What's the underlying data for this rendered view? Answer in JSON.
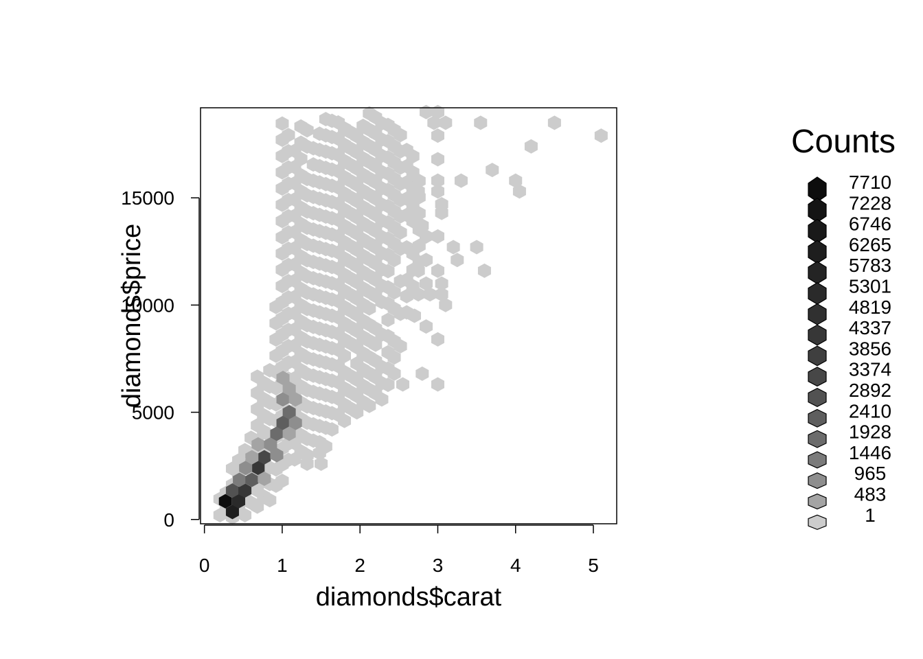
{
  "chart_data": {
    "type": "heatmap",
    "subtype": "hexbin",
    "title": "",
    "xlabel": "diamonds$carat",
    "ylabel": "diamonds$price",
    "xlim": [
      -0.05,
      5.3
    ],
    "ylim": [
      -200,
      19200
    ],
    "x_ticks": [
      0,
      1,
      2,
      3,
      4,
      5
    ],
    "y_ticks": [
      0,
      5000,
      10000,
      15000
    ],
    "grid": false,
    "legend": {
      "title": "Counts",
      "placement": "right",
      "levels": [
        "7710",
        "7228",
        "6746",
        "6265",
        "5783",
        "5301",
        "4819",
        "4337",
        "3856",
        "3374",
        "2892",
        "2410",
        "1928",
        "1446",
        "965",
        "483",
        "1"
      ],
      "colors": [
        "#0d0d0d",
        "#141414",
        "#191919",
        "#1e1e1e",
        "#242424",
        "#2a2a2a",
        "#303030",
        "#373737",
        "#3f3f3f",
        "#474747",
        "#525252",
        "#5e5e5e",
        "#6c6c6c",
        "#7b7b7b",
        "#8e8e8e",
        "#a4a4a4",
        "#cccccc"
      ]
    },
    "base_color": "#cccccc",
    "hex_size": {
      "dx": 0.168,
      "dy": 505
    },
    "regions": [
      {
        "x": 0.2,
        "y0": 200,
        "y1": 1300
      },
      {
        "x": 0.28,
        "y0": 100,
        "y1": 1800
      },
      {
        "x": 0.36,
        "y0": 100,
        "y1": 2400
      },
      {
        "x": 0.44,
        "y0": 100,
        "y1": 3000
      },
      {
        "x": 0.52,
        "y0": 200,
        "y1": 3600
      },
      {
        "x": 0.6,
        "y0": 400,
        "y1": 4200
      },
      {
        "x": 0.68,
        "y0": 600,
        "y1": 6800
      },
      {
        "x": 0.76,
        "y0": 700,
        "y1": 6800
      },
      {
        "x": 0.84,
        "y0": 900,
        "y1": 7400
      },
      {
        "x": 0.92,
        "y0": 1200,
        "y1": 10400
      },
      {
        "x": 1.0,
        "y0": 1800,
        "y1": 18500
      },
      {
        "x": 1.08,
        "y0": 2400,
        "y1": 18000
      },
      {
        "x": 1.16,
        "y0": 2800,
        "y1": 17600
      },
      {
        "x": 1.24,
        "y0": 2800,
        "y1": 18500
      },
      {
        "x": 1.32,
        "y0": 3000,
        "y1": 18500
      },
      {
        "x": 1.4,
        "y0": 3300,
        "y1": 18500
      },
      {
        "x": 1.48,
        "y0": 3600,
        "y1": 18500
      },
      {
        "x": 1.56,
        "y0": 3900,
        "y1": 18800
      },
      {
        "x": 1.64,
        "y0": 4200,
        "y1": 19000
      },
      {
        "x": 1.72,
        "y0": 4500,
        "y1": 19000
      },
      {
        "x": 1.8,
        "y0": 4600,
        "y1": 18800
      },
      {
        "x": 1.88,
        "y0": 4800,
        "y1": 18500
      },
      {
        "x": 1.96,
        "y0": 5000,
        "y1": 18500
      },
      {
        "x": 2.04,
        "y0": 5100,
        "y1": 18800
      },
      {
        "x": 2.12,
        "y0": 5300,
        "y1": 19000
      },
      {
        "x": 2.2,
        "y0": 5500,
        "y1": 19000
      },
      {
        "x": 2.28,
        "y0": 5600,
        "y1": 19000
      },
      {
        "x": 2.36,
        "y0": 5900,
        "y1": 19000
      },
      {
        "x": 2.44,
        "y0": 6800,
        "y1": 18800
      },
      {
        "x": 2.52,
        "y0": 7700,
        "y1": 18500
      },
      {
        "x": 2.6,
        "y0": 8900,
        "y1": 17500
      },
      {
        "x": 2.68,
        "y0": 10500,
        "y1": 17000
      },
      {
        "x": 2.76,
        "y0": 12000,
        "y1": 16000
      }
    ],
    "sparse_bins": [
      {
        "x": 2.85,
        "y": 19000
      },
      {
        "x": 3.0,
        "y": 19000
      },
      {
        "x": 2.95,
        "y": 18500
      },
      {
        "x": 3.1,
        "y": 18500
      },
      {
        "x": 3.0,
        "y": 17900
      },
      {
        "x": 3.55,
        "y": 18500
      },
      {
        "x": 4.5,
        "y": 18500
      },
      {
        "x": 5.1,
        "y": 17900
      },
      {
        "x": 4.2,
        "y": 17400
      },
      {
        "x": 3.0,
        "y": 16800
      },
      {
        "x": 3.7,
        "y": 16300
      },
      {
        "x": 3.3,
        "y": 15800
      },
      {
        "x": 3.0,
        "y": 15800
      },
      {
        "x": 4.0,
        "y": 15800
      },
      {
        "x": 4.05,
        "y": 15300
      },
      {
        "x": 2.75,
        "y": 15300
      },
      {
        "x": 3.0,
        "y": 15300
      },
      {
        "x": 3.05,
        "y": 14700
      },
      {
        "x": 2.7,
        "y": 14300
      },
      {
        "x": 3.05,
        "y": 14300
      },
      {
        "x": 2.8,
        "y": 13700
      },
      {
        "x": 3.0,
        "y": 13200
      },
      {
        "x": 2.85,
        "y": 13200
      },
      {
        "x": 3.2,
        "y": 12700
      },
      {
        "x": 3.5,
        "y": 12700
      },
      {
        "x": 3.25,
        "y": 12100
      },
      {
        "x": 2.85,
        "y": 12100
      },
      {
        "x": 3.6,
        "y": 11600
      },
      {
        "x": 2.75,
        "y": 11600
      },
      {
        "x": 3.0,
        "y": 11600
      },
      {
        "x": 2.85,
        "y": 11000
      },
      {
        "x": 3.05,
        "y": 11000
      },
      {
        "x": 2.75,
        "y": 10500
      },
      {
        "x": 2.9,
        "y": 10500
      },
      {
        "x": 3.05,
        "y": 10500
      },
      {
        "x": 3.1,
        "y": 10000
      },
      {
        "x": 2.7,
        "y": 9500
      },
      {
        "x": 2.85,
        "y": 9000
      },
      {
        "x": 3.0,
        "y": 8400
      },
      {
        "x": 2.8,
        "y": 6800
      },
      {
        "x": 2.55,
        "y": 6300
      },
      {
        "x": 3.0,
        "y": 6300
      }
    ],
    "holes": [
      {
        "x": 1.42,
        "y": 18000
      },
      {
        "x": 1.33,
        "y": 16300
      },
      {
        "x": 1.87,
        "y": 7300
      },
      {
        "x": 2.27,
        "y": 7800
      },
      {
        "x": 2.42,
        "y": 11000
      },
      {
        "x": 2.25,
        "y": 9500
      },
      {
        "x": 2.55,
        "y": 12000
      },
      {
        "x": 2.65,
        "y": 13200
      },
      {
        "x": 2.5,
        "y": 10000
      },
      {
        "x": 2.55,
        "y": 8900
      },
      {
        "x": 2.45,
        "y": 9300
      }
    ],
    "lower_extra": [
      {
        "x": 1.32,
        "y": 2600
      },
      {
        "x": 1.48,
        "y": 3100
      },
      {
        "x": 1.56,
        "y": 3400
      },
      {
        "x": 1.5,
        "y": 2600
      }
    ],
    "dense_bins": [
      {
        "x": 0.27,
        "y": 850,
        "level": 0
      },
      {
        "x": 0.36,
        "y": 350,
        "level": 3
      },
      {
        "x": 0.44,
        "y": 850,
        "level": 5
      },
      {
        "x": 0.36,
        "y": 1350,
        "level": 10
      },
      {
        "x": 0.52,
        "y": 1350,
        "level": 7
      },
      {
        "x": 0.45,
        "y": 1850,
        "level": 13
      },
      {
        "x": 0.61,
        "y": 1850,
        "level": 11
      },
      {
        "x": 0.69,
        "y": 2400,
        "level": 7
      },
      {
        "x": 0.53,
        "y": 2400,
        "level": 14
      },
      {
        "x": 0.77,
        "y": 2900,
        "level": 9
      },
      {
        "x": 0.61,
        "y": 2900,
        "level": 15
      },
      {
        "x": 0.77,
        "y": 1900,
        "level": 15
      },
      {
        "x": 0.69,
        "y": 3500,
        "level": 15
      },
      {
        "x": 0.85,
        "y": 3500,
        "level": 14
      },
      {
        "x": 0.93,
        "y": 4000,
        "level": 12
      },
      {
        "x": 0.93,
        "y": 3000,
        "level": 14
      },
      {
        "x": 1.01,
        "y": 4500,
        "level": 11
      },
      {
        "x": 1.09,
        "y": 5000,
        "level": 12
      },
      {
        "x": 1.17,
        "y": 4500,
        "level": 14
      },
      {
        "x": 1.01,
        "y": 5600,
        "level": 14
      },
      {
        "x": 1.09,
        "y": 6100,
        "level": 15
      },
      {
        "x": 1.17,
        "y": 5600,
        "level": 15
      },
      {
        "x": 1.01,
        "y": 6600,
        "level": 15
      },
      {
        "x": 1.09,
        "y": 4000,
        "level": 15
      }
    ]
  }
}
